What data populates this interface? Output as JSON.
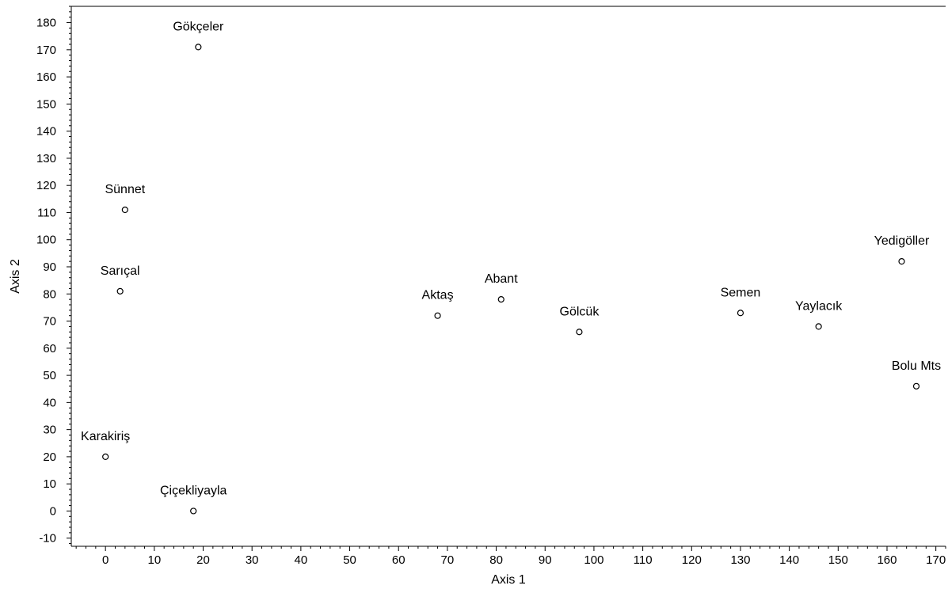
{
  "chart_data": {
    "type": "scatter",
    "title": "",
    "xlabel": "Axis 1",
    "ylabel": "Axis 2",
    "xlim": [
      -7,
      172
    ],
    "ylim": [
      -13,
      186
    ],
    "xticks": [
      0,
      10,
      20,
      30,
      40,
      50,
      60,
      70,
      80,
      90,
      100,
      110,
      120,
      130,
      140,
      150,
      160,
      170
    ],
    "yticks": [
      -10,
      0,
      10,
      20,
      30,
      40,
      50,
      60,
      70,
      80,
      90,
      100,
      110,
      120,
      130,
      140,
      150,
      160,
      170,
      180
    ],
    "xtick_labels": [
      "0",
      "10",
      "20",
      "30",
      "40",
      "50",
      "60",
      "70",
      "80",
      "90",
      "100",
      "110",
      "120",
      "130",
      "140",
      "150",
      "160",
      "170"
    ],
    "ytick_labels": [
      "-10",
      "0",
      "10",
      "20",
      "30",
      "40",
      "50",
      "60",
      "70",
      "80",
      "90",
      "100",
      "110",
      "120",
      "130",
      "140",
      "150",
      "160",
      "170",
      "180"
    ],
    "minor_tick_step": 2,
    "grid": false,
    "legend": "none",
    "marker": "open-circle",
    "colors": {
      "axis": "#000000",
      "marker_stroke": "#000000",
      "marker_fill": "#ffffff",
      "background": "#ffffff"
    },
    "points": [
      {
        "label": "Gökçeler",
        "x": 19,
        "y": 171
      },
      {
        "label": "Sünnet",
        "x": 4,
        "y": 111
      },
      {
        "label": "Sarıçal",
        "x": 3,
        "y": 81
      },
      {
        "label": "Karakiriş",
        "x": 0,
        "y": 20
      },
      {
        "label": "Çiçekliyayla",
        "x": 18,
        "y": 0
      },
      {
        "label": "Aktaş",
        "x": 68,
        "y": 72
      },
      {
        "label": "Abant",
        "x": 81,
        "y": 78
      },
      {
        "label": "Gölcük",
        "x": 97,
        "y": 66
      },
      {
        "label": "Semen",
        "x": 130,
        "y": 73
      },
      {
        "label": "Yaylacık",
        "x": 146,
        "y": 68
      },
      {
        "label": "Yedigöller",
        "x": 163,
        "y": 92
      },
      {
        "label": "Bolu Mts",
        "x": 166,
        "y": 46
      }
    ]
  }
}
